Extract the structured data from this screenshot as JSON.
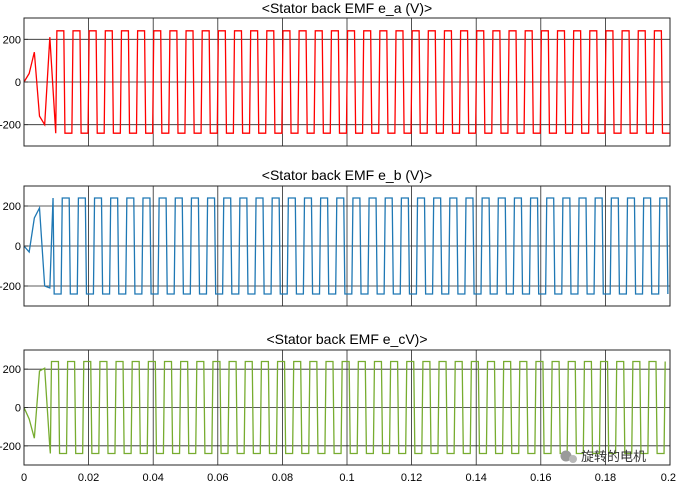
{
  "chart_data": [
    {
      "type": "line",
      "title": "<Stator back EMF e_a (V)>",
      "series": [
        {
          "name": "e_a",
          "color": "#ff0000",
          "amplitude": 240,
          "phase_deg": 0,
          "startup": [
            0,
            40,
            140,
            -160,
            -200,
            210
          ]
        }
      ],
      "xlim": [
        0,
        0.2
      ],
      "ylim": [
        -300,
        300
      ],
      "yticks": [
        -200,
        0,
        200
      ],
      "ytick_labels": [
        "-200",
        "0",
        "200"
      ],
      "xticks": [
        0,
        0.02,
        0.04,
        0.06,
        0.08,
        0.1,
        0.12,
        0.14,
        0.16,
        0.18,
        0.2
      ],
      "xtick_labels": [],
      "grid": true,
      "xlabel": "",
      "ylabel": ""
    },
    {
      "type": "line",
      "title": "<Stator back EMF e_b (V)>",
      "series": [
        {
          "name": "e_b",
          "color": "#1f78b4",
          "amplitude": 240,
          "phase_deg": 120,
          "startup": [
            0,
            -30,
            140,
            190,
            -200,
            -210
          ]
        }
      ],
      "xlim": [
        0,
        0.2
      ],
      "ylim": [
        -300,
        300
      ],
      "yticks": [
        -200,
        0,
        200
      ],
      "ytick_labels": [
        "-200",
        "0",
        "200"
      ],
      "xticks": [
        0,
        0.02,
        0.04,
        0.06,
        0.08,
        0.1,
        0.12,
        0.14,
        0.16,
        0.18,
        0.2
      ],
      "xtick_labels": [],
      "grid": true,
      "xlabel": "",
      "ylabel": ""
    },
    {
      "type": "line",
      "title": "<Stator back EMF e_cV)>",
      "series": [
        {
          "name": "e_c",
          "color": "#77ac30",
          "amplitude": 240,
          "phase_deg": 240,
          "startup": [
            0,
            -60,
            -160,
            190,
            205,
            -210
          ]
        }
      ],
      "xlim": [
        0,
        0.2
      ],
      "ylim": [
        -300,
        300
      ],
      "yticks": [
        -200,
        0,
        200
      ],
      "ytick_labels": [
        "-200",
        "0",
        "200"
      ],
      "xticks": [
        0,
        0.02,
        0.04,
        0.06,
        0.08,
        0.1,
        0.12,
        0.14,
        0.16,
        0.18,
        0.2
      ],
      "xtick_labels": [
        "0",
        "0.02",
        "0.04",
        "0.06",
        "0.08",
        "0.1",
        "0.12",
        "0.14",
        "0.16",
        "0.18",
        "0.2"
      ],
      "grid": true,
      "xlabel": "",
      "ylabel": ""
    }
  ],
  "watermark": {
    "text": "旋转的电机"
  }
}
